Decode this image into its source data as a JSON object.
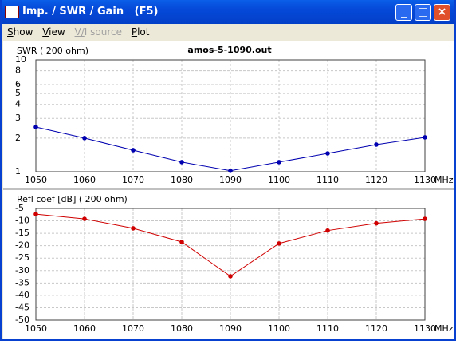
{
  "window": {
    "title": "Imp. / SWR / Gain   (F5)"
  },
  "menu": [
    "Show",
    "View",
    "V/I source",
    "Plot"
  ],
  "chart_data": [
    {
      "type": "line",
      "title": "amos-5-1090.out",
      "ylabel": "SWR ( 200 ohm)",
      "xlabel": "MHz",
      "x": [
        1050,
        1060,
        1070,
        1080,
        1090,
        1100,
        1110,
        1120,
        1130
      ],
      "values": [
        2.51,
        2.0,
        1.56,
        1.22,
        1.02,
        1.22,
        1.46,
        1.75,
        2.03
      ],
      "color": "#0000b0",
      "ylog": true,
      "grid": true,
      "xlim": [
        1050,
        1130
      ],
      "xticks": [
        1050,
        1060,
        1070,
        1080,
        1090,
        1100,
        1110,
        1120,
        1130
      ],
      "ylim": [
        1,
        10
      ],
      "yticks": [
        1,
        2,
        3,
        4,
        5,
        6,
        8,
        10
      ]
    },
    {
      "type": "line",
      "ylabel": "Refl coef [dB] ( 200 ohm)",
      "xlabel": "MHz",
      "x": [
        1050,
        1060,
        1070,
        1080,
        1090,
        1100,
        1110,
        1120,
        1130
      ],
      "values": [
        -7.3,
        -9.2,
        -13.0,
        -18.5,
        -32.3,
        -19.1,
        -13.9,
        -11.0,
        -9.2
      ],
      "color": "#d00000",
      "ylog": false,
      "grid": true,
      "xlim": [
        1050,
        1130
      ],
      "xticks": [
        1050,
        1060,
        1070,
        1080,
        1090,
        1100,
        1110,
        1120,
        1130
      ],
      "ylim": [
        -50,
        -5
      ],
      "yticks": [
        -5,
        -10,
        -15,
        -20,
        -25,
        -30,
        -35,
        -40,
        -45,
        -50
      ]
    }
  ]
}
